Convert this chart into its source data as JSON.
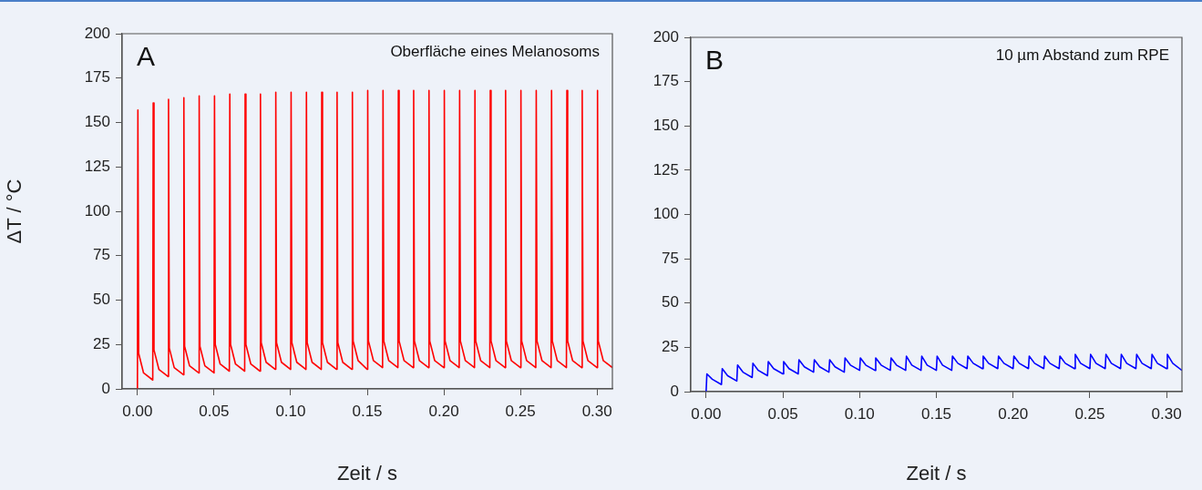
{
  "chart_data": [
    {
      "type": "line",
      "title": "A",
      "annotations": [
        "Oberfläche eines Melanosoms"
      ],
      "xlabel": "Zeit / s",
      "ylabel": "ΔT / °C",
      "xlim": [
        -0.01,
        0.31
      ],
      "xticks": [
        {
          "value": 0,
          "label": "0.00"
        },
        {
          "value": 0.05,
          "label": "0.05"
        },
        {
          "value": 0.1,
          "label": "0.10"
        },
        {
          "value": 0.15,
          "label": "0.15"
        },
        {
          "value": 0.2,
          "label": "0.20"
        },
        {
          "value": 0.25,
          "label": "0.25"
        },
        {
          "value": 0.3,
          "label": "0.30"
        }
      ],
      "ylim": [
        0,
        200
      ],
      "yticks": [
        0,
        25,
        50,
        75,
        100,
        125,
        150,
        175,
        200
      ],
      "grid": false,
      "legend": false,
      "marker": "none",
      "line_style": "solid",
      "series": [
        {
          "color": "#ff0000",
          "x": [
            0,
            0.0003,
            0.0008,
            0.004,
            0.01,
            0.0103,
            0.0108,
            0.014,
            0.02,
            0.0203,
            0.0208,
            0.024,
            0.03,
            0.0303,
            0.0308,
            0.034,
            0.04,
            0.0403,
            0.0408,
            0.044,
            0.05,
            0.0503,
            0.0508,
            0.054,
            0.06,
            0.0603,
            0.0608,
            0.064,
            0.07,
            0.0703,
            0.0708,
            0.074,
            0.08,
            0.0803,
            0.0808,
            0.084,
            0.09,
            0.0903,
            0.0908,
            0.094,
            0.1,
            0.1003,
            0.1008,
            0.104,
            0.11,
            0.1103,
            0.1108,
            0.114,
            0.12,
            0.1203,
            0.1208,
            0.124,
            0.13,
            0.1303,
            0.1308,
            0.134,
            0.14,
            0.1403,
            0.1408,
            0.144,
            0.15,
            0.1503,
            0.1508,
            0.154,
            0.16,
            0.1603,
            0.1608,
            0.164,
            0.17,
            0.1703,
            0.1708,
            0.174,
            0.18,
            0.1803,
            0.1808,
            0.184,
            0.19,
            0.1903,
            0.1908,
            0.194,
            0.2,
            0.2003,
            0.2008,
            0.204,
            0.21,
            0.2103,
            0.2108,
            0.214,
            0.22,
            0.2203,
            0.2208,
            0.224,
            0.23,
            0.2303,
            0.2308,
            0.234,
            0.24,
            0.2403,
            0.2408,
            0.244,
            0.25,
            0.2503,
            0.2508,
            0.254,
            0.26,
            0.2603,
            0.2608,
            0.264,
            0.27,
            0.2703,
            0.2708,
            0.274,
            0.28,
            0.2803,
            0.2808,
            0.284,
            0.29,
            0.2903,
            0.2908,
            0.294,
            0.3,
            0.3003,
            0.3008,
            0.304,
            0.31
          ],
          "values": [
            0,
            157,
            20,
            9,
            5,
            161,
            22,
            11,
            7,
            163,
            23,
            12,
            8,
            164,
            24,
            13,
            9,
            165,
            24,
            13,
            9,
            165,
            25,
            14,
            10,
            166,
            25,
            14,
            10,
            166,
            25,
            14,
            10,
            166,
            26,
            15,
            11,
            167,
            26,
            15,
            11,
            167,
            26,
            15,
            11,
            167,
            26,
            15,
            11,
            167,
            26,
            15,
            11,
            167,
            26,
            15,
            11,
            167,
            27,
            16,
            11,
            168,
            27,
            16,
            12,
            168,
            27,
            16,
            12,
            168,
            27,
            16,
            12,
            168,
            27,
            16,
            12,
            168,
            27,
            16,
            12,
            168,
            27,
            16,
            12,
            168,
            27,
            16,
            12,
            168,
            27,
            16,
            12,
            168,
            27,
            16,
            12,
            168,
            27,
            16,
            12,
            168,
            27,
            16,
            12,
            168,
            27,
            16,
            12,
            168,
            27,
            16,
            12,
            168,
            27,
            16,
            12,
            168,
            27,
            16,
            12,
            168,
            27,
            16,
            12
          ]
        }
      ]
    },
    {
      "type": "line",
      "title": "B",
      "annotations": [
        "10 µm Abstand zum RPE"
      ],
      "xlabel": "Zeit / s",
      "xlim": [
        -0.01,
        0.31
      ],
      "xticks": [
        {
          "value": 0,
          "label": "0.00"
        },
        {
          "value": 0.05,
          "label": "0.05"
        },
        {
          "value": 0.1,
          "label": "0.10"
        },
        {
          "value": 0.15,
          "label": "0.15"
        },
        {
          "value": 0.2,
          "label": "0.20"
        },
        {
          "value": 0.25,
          "label": "0.25"
        },
        {
          "value": 0.3,
          "label": "0.30"
        }
      ],
      "ylim": [
        0,
        200
      ],
      "yticks": [
        0,
        25,
        50,
        75,
        100,
        125,
        150,
        175,
        200
      ],
      "grid": false,
      "legend": false,
      "marker": "none",
      "line_style": "solid",
      "series": [
        {
          "color": "#0000ff",
          "x": [
            0,
            0.0005,
            0.004,
            0.01,
            0.0105,
            0.014,
            0.02,
            0.0205,
            0.024,
            0.03,
            0.0305,
            0.034,
            0.04,
            0.0405,
            0.044,
            0.05,
            0.0505,
            0.054,
            0.06,
            0.0605,
            0.064,
            0.07,
            0.0705,
            0.074,
            0.08,
            0.0805,
            0.084,
            0.09,
            0.0905,
            0.094,
            0.1,
            0.1005,
            0.104,
            0.11,
            0.1105,
            0.114,
            0.12,
            0.1205,
            0.124,
            0.13,
            0.1305,
            0.134,
            0.14,
            0.1405,
            0.144,
            0.15,
            0.1505,
            0.154,
            0.16,
            0.1605,
            0.164,
            0.17,
            0.1705,
            0.174,
            0.18,
            0.1805,
            0.184,
            0.19,
            0.1905,
            0.194,
            0.2,
            0.2005,
            0.204,
            0.21,
            0.2105,
            0.214,
            0.22,
            0.2205,
            0.224,
            0.23,
            0.2305,
            0.234,
            0.24,
            0.2405,
            0.244,
            0.25,
            0.2505,
            0.254,
            0.26,
            0.2605,
            0.264,
            0.27,
            0.2705,
            0.274,
            0.28,
            0.2805,
            0.284,
            0.29,
            0.2905,
            0.294,
            0.3,
            0.3005,
            0.304,
            0.31
          ],
          "values": [
            0,
            10,
            7,
            4,
            13,
            9,
            6,
            15,
            11,
            8,
            16,
            12,
            9,
            17,
            13,
            10,
            17,
            13,
            10,
            18,
            14,
            11,
            18,
            14,
            11,
            18,
            14,
            11,
            19,
            15,
            12,
            19,
            15,
            12,
            19,
            15,
            12,
            19,
            15,
            12,
            20,
            15,
            12,
            20,
            15,
            12,
            20,
            15,
            12,
            20,
            16,
            13,
            20,
            16,
            13,
            20,
            16,
            13,
            20,
            16,
            13,
            20,
            16,
            13,
            20,
            16,
            13,
            20,
            16,
            13,
            20,
            16,
            13,
            21,
            16,
            13,
            21,
            16,
            13,
            21,
            16,
            13,
            21,
            16,
            13,
            21,
            16,
            13,
            21,
            16,
            13,
            21,
            16,
            12
          ]
        }
      ]
    }
  ]
}
